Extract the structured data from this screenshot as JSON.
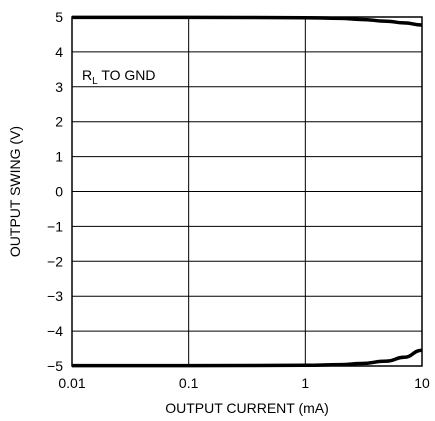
{
  "chart_data": {
    "type": "line",
    "title": "",
    "xlabel": "OUTPUT CURRENT (mA)",
    "ylabel": "OUTPUT SWING (V)",
    "xscale": "log",
    "xlim": [
      0.01,
      10
    ],
    "ylim": [
      -5,
      5
    ],
    "x_ticks": [
      0.01,
      0.1,
      1,
      10
    ],
    "x_tick_labels": [
      "0.01",
      "0.1",
      "1",
      "10"
    ],
    "y_ticks": [
      5,
      4,
      3,
      2,
      1,
      0,
      -1,
      -2,
      -3,
      -4,
      -5
    ],
    "y_tick_labels": [
      "5",
      "4",
      "3",
      "2",
      "1",
      "0",
      "−1",
      "−2",
      "−3",
      "−4",
      "−5"
    ],
    "grid": true,
    "annotation": {
      "main": "R",
      "sub": "L",
      "rest": " TO GND"
    },
    "series": [
      {
        "x": [
          0.01,
          0.1,
          1,
          2,
          3,
          5,
          7,
          10
        ],
        "y": [
          4.99,
          4.99,
          4.98,
          4.96,
          4.93,
          4.88,
          4.83,
          4.77
        ]
      },
      {
        "x": [
          0.01,
          0.1,
          1,
          2,
          3,
          5,
          7,
          10
        ],
        "y": [
          -4.99,
          -4.99,
          -4.98,
          -4.96,
          -4.93,
          -4.86,
          -4.75,
          -4.55
        ]
      }
    ]
  }
}
